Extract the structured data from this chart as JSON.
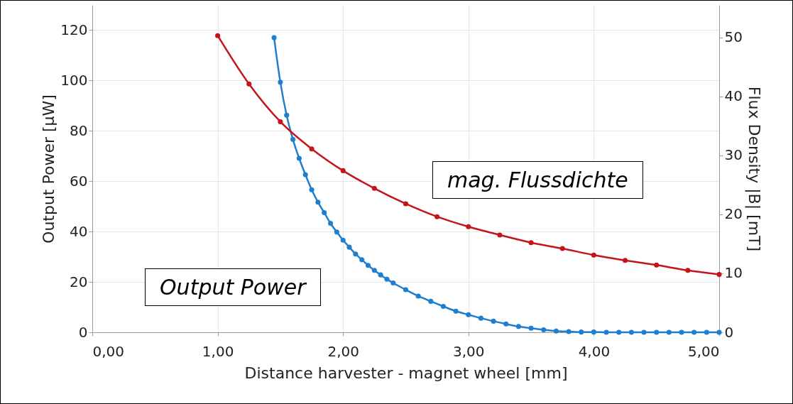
{
  "chart_data": {
    "type": "line",
    "xlabel": "Distance harvester - magnet wheel [mm]",
    "ylabel": "Output Power [µW]",
    "y2label": "Flux Density |B| [mT]",
    "xlim": [
      0,
      5
    ],
    "xticks": [
      {
        "value": 0,
        "label": "0,00"
      },
      {
        "value": 1,
        "label": "1,00"
      },
      {
        "value": 2,
        "label": "2,00"
      },
      {
        "value": 3,
        "label": "3,00"
      },
      {
        "value": 4,
        "label": "4,00"
      },
      {
        "value": 5,
        "label": "5,00"
      }
    ],
    "ylim": [
      0,
      130
    ],
    "yticks": [
      0,
      20,
      40,
      60,
      80,
      100,
      120
    ],
    "y2lim": [
      0,
      55.5
    ],
    "y2ticks": [
      0,
      10,
      20,
      30,
      40,
      50
    ],
    "grid": true,
    "marker": "circle",
    "line_style": "solid",
    "series": [
      {
        "name": "Output Power",
        "color": "#1f7fcf",
        "x": [
          1.45,
          1.5,
          1.55,
          1.6,
          1.65,
          1.7,
          1.75,
          1.8,
          1.85,
          1.9,
          1.95,
          2.0,
          2.05,
          2.1,
          2.15,
          2.2,
          2.25,
          2.3,
          2.35,
          2.4,
          2.5,
          2.6,
          2.7,
          2.8,
          2.9,
          3.0,
          3.1,
          3.2,
          3.3,
          3.4,
          3.5,
          3.6,
          3.7,
          3.8,
          3.9,
          4.0,
          4.1,
          4.2,
          4.3,
          4.4,
          4.5,
          4.6,
          4.7,
          4.8,
          4.9,
          5.0
        ],
        "values": [
          117.0,
          99.3,
          86.2,
          76.6,
          69.1,
          62.6,
          56.6,
          51.7,
          47.5,
          43.3,
          39.8,
          36.6,
          33.8,
          31.1,
          28.8,
          26.6,
          24.6,
          22.8,
          21.1,
          19.6,
          16.9,
          14.4,
          12.3,
          10.3,
          8.4,
          7.0,
          5.6,
          4.4,
          3.3,
          2.3,
          1.6,
          1.0,
          0.5,
          0.3,
          0.1,
          0.1,
          0,
          0,
          0,
          0,
          0,
          0,
          0,
          0,
          0,
          0
        ]
      },
      {
        "name": "mag. Flussdichte",
        "color": "#c3151c",
        "axis": "y2",
        "x": [
          1.0,
          1.25,
          1.5,
          1.75,
          2.0,
          2.25,
          2.5,
          2.75,
          3.0,
          3.25,
          3.5,
          3.75,
          4.0,
          4.25,
          4.5,
          4.75,
          5.0
        ],
        "values": [
          50.3,
          42.1,
          35.7,
          31.1,
          27.4,
          24.4,
          21.8,
          19.6,
          17.9,
          16.5,
          15.2,
          14.2,
          13.1,
          12.2,
          11.4,
          10.5,
          9.8
        ]
      }
    ]
  }
}
